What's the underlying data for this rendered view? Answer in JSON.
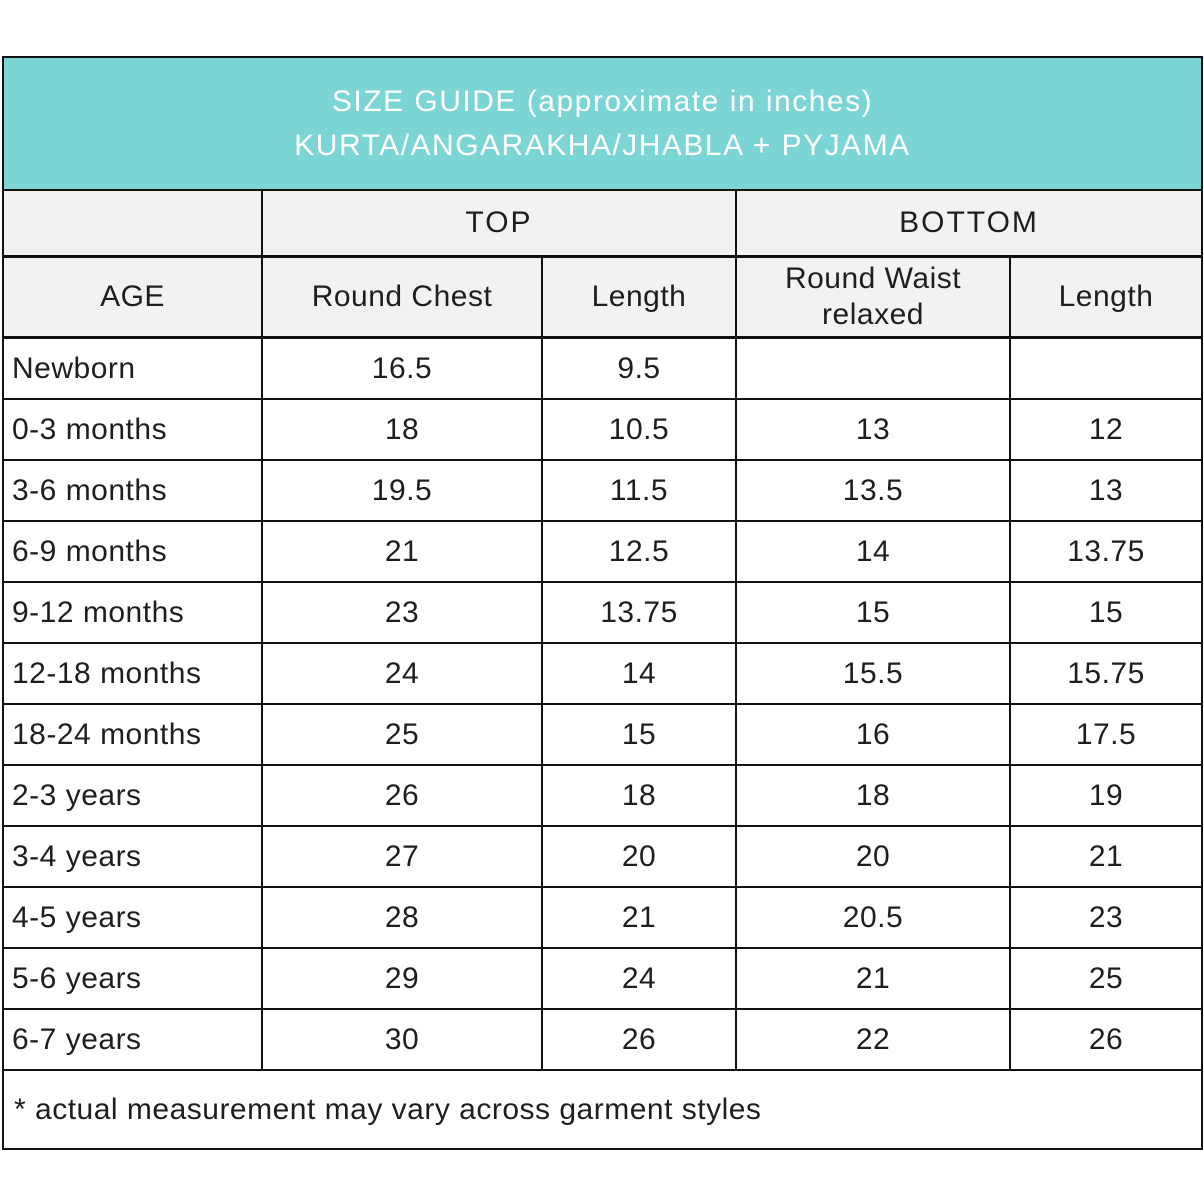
{
  "banner": {
    "line1": "SIZE GUIDE (approximate in inches)",
    "line2": "KURTA/ANGARAKHA/JHABLA + PYJAMA"
  },
  "table": {
    "group_headers": {
      "top": "TOP",
      "bottom": "BOTTOM"
    },
    "columns": [
      "AGE",
      "Round Chest",
      "Length",
      "Round Waist relaxed",
      "Length"
    ],
    "rows": [
      [
        "Newborn",
        "16.5",
        "9.5",
        "",
        ""
      ],
      [
        "0-3 months",
        "18",
        "10.5",
        "13",
        "12"
      ],
      [
        "3-6 months",
        "19.5",
        "11.5",
        "13.5",
        "13"
      ],
      [
        "6-9 months",
        "21",
        "12.5",
        "14",
        "13.75"
      ],
      [
        "9-12 months",
        "23",
        "13.75",
        "15",
        "15"
      ],
      [
        "12-18 months",
        "24",
        "14",
        "15.5",
        "15.75"
      ],
      [
        "18-24 months",
        "25",
        "15",
        "16",
        "17.5"
      ],
      [
        "2-3 years",
        "26",
        "18",
        "18",
        "19"
      ],
      [
        "3-4 years",
        "27",
        "20",
        "20",
        "21"
      ],
      [
        "4-5 years",
        "28",
        "21",
        "20.5",
        "23"
      ],
      [
        "5-6 years",
        "29",
        "24",
        "21",
        "25"
      ],
      [
        "6-7 years",
        "30",
        "26",
        "22",
        "26"
      ]
    ]
  },
  "footnote": "* actual measurement may vary across garment styles",
  "colors": {
    "banner_bg": "#7cd5d5",
    "banner_text": "#ffffff",
    "header_bg": "#f2f2f3",
    "border": "#111114",
    "text": "#1e1e1e"
  }
}
